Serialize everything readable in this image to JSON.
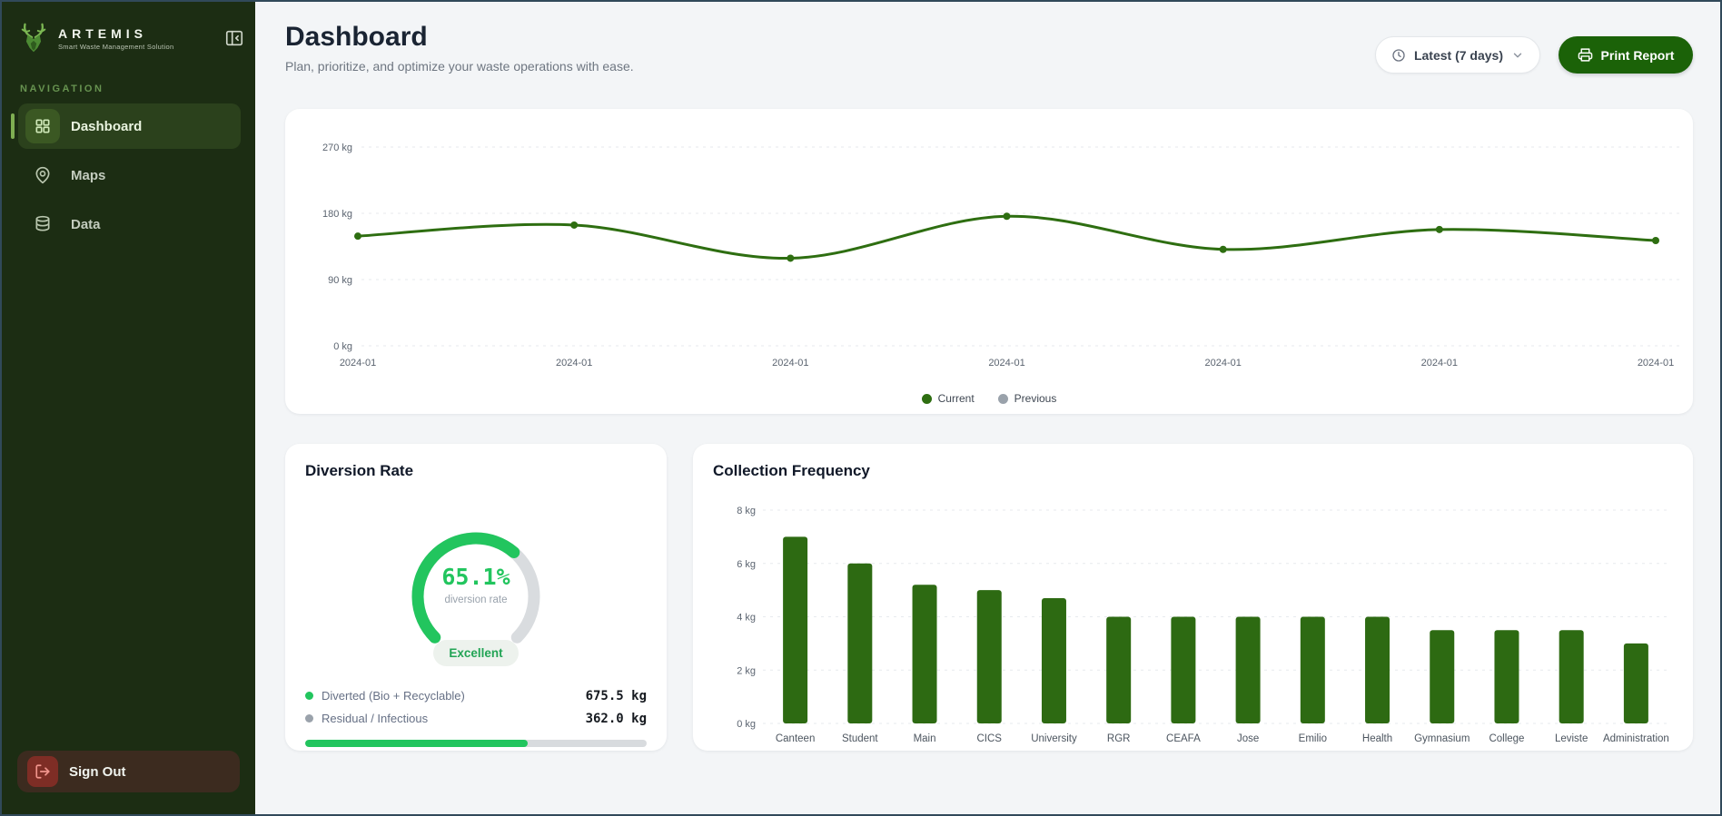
{
  "sidebar": {
    "brand": {
      "name": "ARTEMIS",
      "tagline": "Smart Waste Management Solution"
    },
    "nav_label": "NAVIGATION",
    "items": [
      {
        "label": "Dashboard",
        "icon": "layout-grid-icon",
        "active": true
      },
      {
        "label": "Maps",
        "icon": "map-pin-icon",
        "active": false
      },
      {
        "label": "Data",
        "icon": "database-icon",
        "active": false
      }
    ],
    "sign_out_label": "Sign Out"
  },
  "header": {
    "title": "Dashboard",
    "subtitle": "Plan, prioritize, and optimize your waste operations with ease.",
    "range_button_label": "Latest (7 days)",
    "print_button_label": "Print Report"
  },
  "colors": {
    "sidebar_bg": "#1c2d13",
    "accent_dark_green": "#2e6e11",
    "button_green": "#1b6208",
    "bright_green": "#22c55e",
    "previous_gray": "#9aa2ab",
    "main_bg": "#f3f5f7"
  },
  "chart_data": [
    {
      "type": "line",
      "title": "",
      "x_labels": [
        "2024-01",
        "2024-01",
        "2024-01",
        "2024-01",
        "2024-01",
        "2024-01",
        "2024-01"
      ],
      "series": [
        {
          "name": "Current",
          "color": "#2e6e11",
          "values": [
            149,
            164,
            119,
            176,
            131,
            158,
            143
          ]
        },
        {
          "name": "Previous",
          "color": "#9aa2ab",
          "values": []
        }
      ],
      "unit": "kg",
      "yticks": [
        0,
        90,
        180,
        270
      ],
      "ylim": [
        0,
        270
      ],
      "grid": true,
      "legend_position": "bottom"
    },
    {
      "type": "gauge",
      "title": "Diversion Rate",
      "value": 65.1,
      "max": 100,
      "display": "65.1%",
      "label": "diversion rate",
      "color": "#22c55e",
      "track_color": "#d9dcdf",
      "sweep_degrees": 270
    },
    {
      "type": "bar",
      "title": "Collection Frequency",
      "categories": [
        "Canteen",
        "Student",
        "Main",
        "CICS",
        "University",
        "RGR",
        "CEAFA",
        "Jose",
        "Emilio",
        "Health",
        "Gymnasium",
        "College",
        "Leviste",
        "Administration"
      ],
      "values": [
        7,
        6,
        5.2,
        5,
        4.7,
        4,
        4,
        4,
        4,
        4,
        3.5,
        3.5,
        3.5,
        3
      ],
      "unit": "kg",
      "yticks": [
        0,
        2,
        4,
        6,
        8
      ],
      "ylim": [
        0,
        8
      ],
      "color": "#2d6a12",
      "grid": true
    }
  ],
  "diversion": {
    "title": "Diversion Rate",
    "rate": "65.1%",
    "rate_label": "diversion rate",
    "badge": "Excellent",
    "rows": [
      {
        "label": "Diverted (Bio + Recyclable)",
        "value": "675.5 kg",
        "color": "#22c55e"
      },
      {
        "label": "Residual / Infectious",
        "value": "362.0 kg",
        "color": "#9aa2ab"
      }
    ],
    "progress_pct": 65.1
  },
  "collection": {
    "title": "Collection Frequency"
  }
}
